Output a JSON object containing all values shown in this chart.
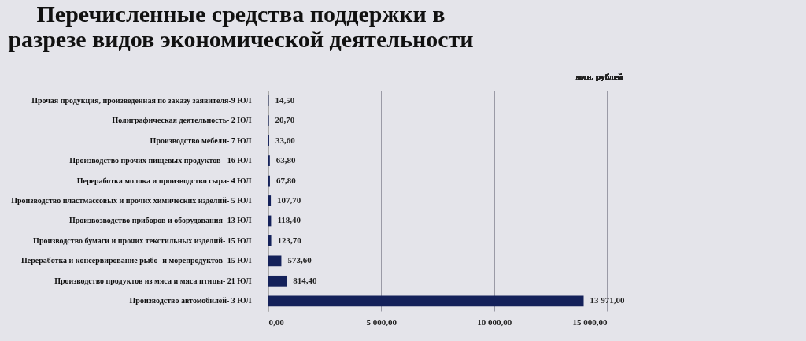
{
  "chart_data": {
    "type": "bar",
    "orientation": "horizontal",
    "title": "Перечисленные средства поддержки в разрезе видов экономической деятельности",
    "annotations": [
      "млн. рублей"
    ],
    "categories": [
      "Прочая продукция, произведенная по заказу заявителя-9 ЮЛ",
      "Полиграфическая деятельность- 2 ЮЛ",
      "Производство мебели- 7 ЮЛ",
      "Производство прочих пищевых продуктов - 16 ЮЛ",
      "Переработка молока и производство сыра- 4 ЮЛ",
      "Производство пластмассовых и прочих химических изделий- 5 ЮЛ",
      "Произвозводство приборов и оборудования- 13 ЮЛ",
      "Производство бумаги и прочих текстильных изделий- 15 ЮЛ",
      "Переработка и консервирование рыбо- и морепродуктов- 15 ЮЛ",
      "Производство продуктов из мяса и мяса птицы- 21 ЮЛ",
      "Производство автомобилей- 3 ЮЛ"
    ],
    "values": [
      14.5,
      20.7,
      33.6,
      63.8,
      67.8,
      107.7,
      118.4,
      123.7,
      573.6,
      814.4,
      13971
    ],
    "value_labels": [
      "14,50",
      "20,70",
      "33,60",
      "63,80",
      "67,80",
      "107,70",
      "118,40",
      "123,70",
      "573,60",
      "814,40",
      "13 971,00"
    ],
    "color": "#14215a",
    "xlim": [
      0,
      15000
    ],
    "xticks": [
      {
        "value": 0,
        "label": "0,00"
      },
      {
        "value": 5000,
        "label": "5 000,00"
      },
      {
        "value": 10000,
        "label": "10 000,00"
      },
      {
        "value": 15000,
        "label": "15 000,00"
      }
    ],
    "grid": "x"
  }
}
